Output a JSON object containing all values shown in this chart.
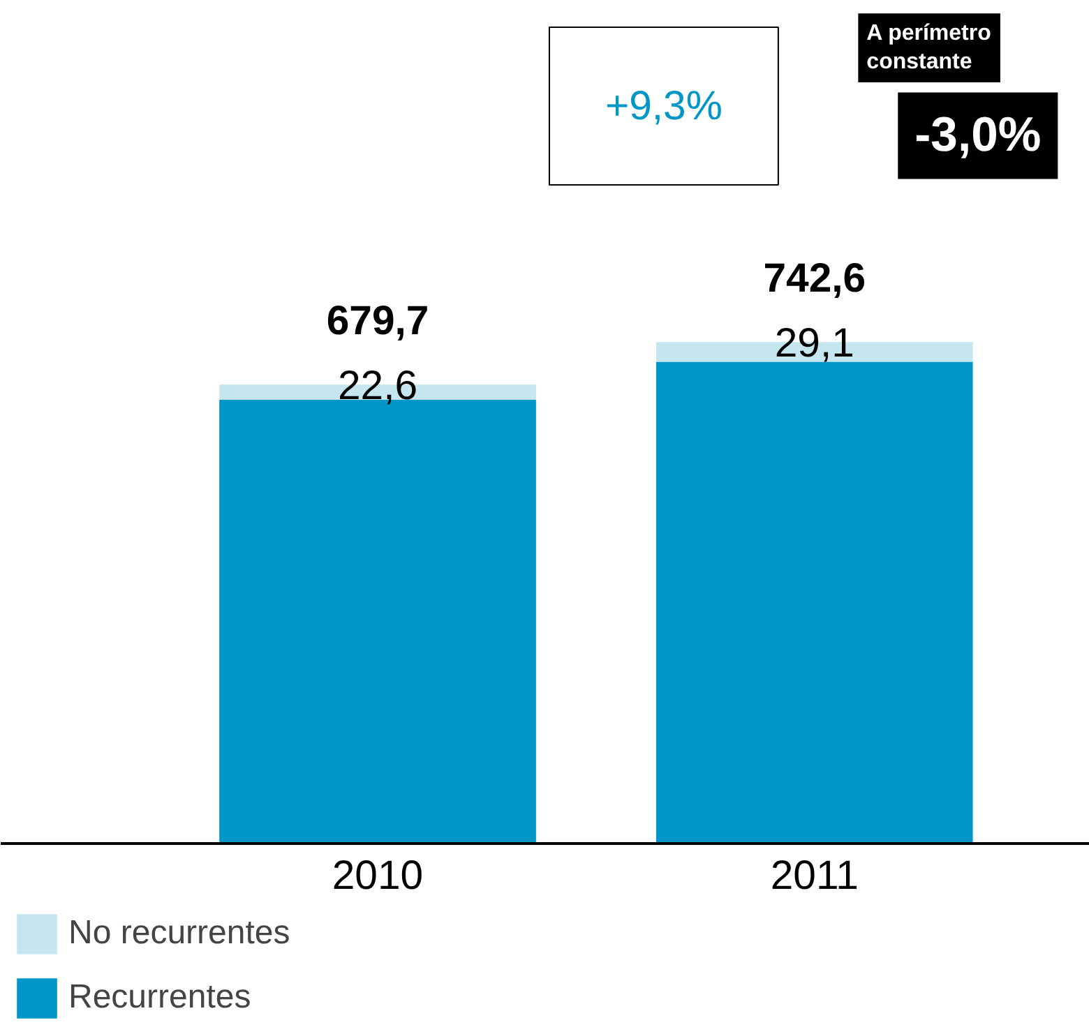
{
  "chart_data": {
    "type": "bar",
    "stacked": true,
    "categories": [
      "2010",
      "2011"
    ],
    "series": [
      {
        "name": "Recurrentes",
        "color": "#0096c8",
        "values": [
          657.1,
          713.5
        ]
      },
      {
        "name": "No recurrentes",
        "color": "#c5e5ef",
        "values": [
          22.6,
          29.1
        ],
        "value_labels": [
          "22,6",
          "29,1"
        ]
      }
    ],
    "totals": [
      "679,7",
      "742,6"
    ],
    "annotations": [
      "+9,3%",
      "A perímetro constante",
      "-3,0%"
    ],
    "legend": "bottom left",
    "grid": false
  }
}
